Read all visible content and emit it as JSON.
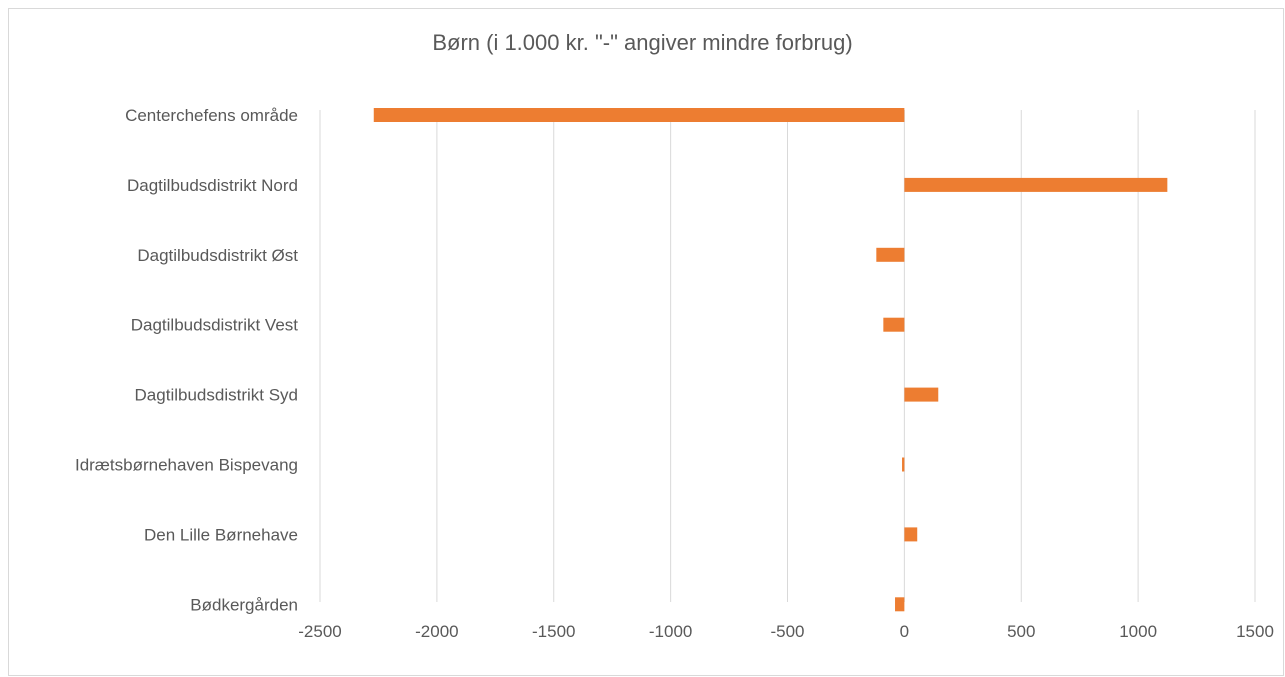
{
  "chart_data": {
    "type": "bar",
    "orientation": "horizontal",
    "title": "Børn (i 1.000 kr. \"-\" angiver mindre forbrug)",
    "categories": [
      "Centerchefens område",
      "Dagtilbudsdistrikt Nord",
      "Dagtilbudsdistrikt Øst",
      "Dagtilbudsdistrikt Vest",
      "Dagtilbudsdistrikt Syd",
      "Idrætsbørnehaven Bispevang",
      "Den Lille Børnehave",
      "Bødkergården"
    ],
    "values": [
      -2270,
      1125,
      -120,
      -90,
      145,
      -10,
      55,
      -40
    ],
    "xlim": [
      -2500,
      1500
    ],
    "xticks": [
      -2500,
      -2000,
      -1500,
      -1000,
      -500,
      0,
      500,
      1000,
      1500
    ],
    "xtick_labels": [
      "-2500",
      "-2000",
      "-1500",
      "-1000",
      "-500",
      "0",
      "500",
      "1000",
      "1500"
    ],
    "grid": true,
    "bar_color": "#ED7D31",
    "grid_color": "#d9d9d9"
  }
}
